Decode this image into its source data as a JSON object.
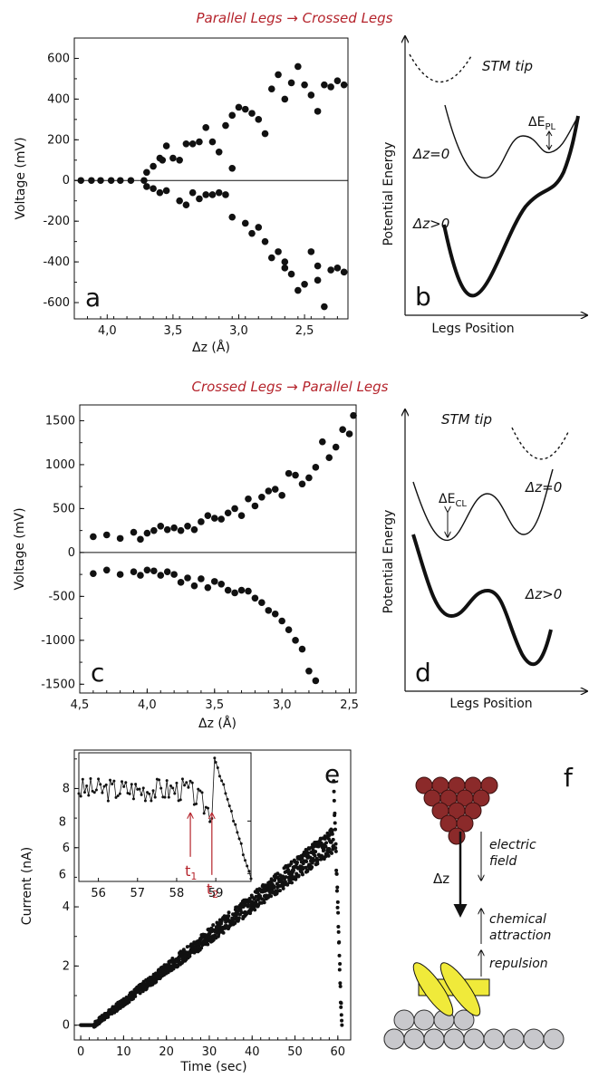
{
  "titles": {
    "top": "Parallel Legs → Crossed Legs",
    "middle": "Crossed Legs → Parallel Legs"
  },
  "panel_labels": {
    "a": "a",
    "b": "b",
    "c": "c",
    "d": "d",
    "e": "e",
    "f": "f"
  },
  "schematics": {
    "b": {
      "ylabel": "Potential Energy",
      "xlabel": "Legs Position",
      "tip": "STM tip",
      "curve_top": "Δz=0",
      "curve_bottom": "Δz>0",
      "barrier": "ΔE",
      "barrier_sub": "PL"
    },
    "d": {
      "ylabel": "Potential Energy",
      "xlabel": "Legs Position",
      "tip": "STM tip",
      "curve_top": "Δz=0",
      "curve_bottom": "Δz>0",
      "barrier": "ΔE",
      "barrier_sub": "CL"
    },
    "f": {
      "dz": "Δz",
      "electric_1": "electric",
      "electric_2": "field",
      "chem_1": "chemical",
      "chem_2": "attraction",
      "repulsion": "repulsion"
    }
  },
  "chart_data": [
    {
      "id": "a",
      "type": "scatter",
      "xlabel": "Δz (Å)",
      "ylabel": "Voltage (mV)",
      "xlim": [
        4.25,
        2.17
      ],
      "ylim": [
        -680,
        700
      ],
      "xticks": [
        "4,0",
        "3,5",
        "3,0",
        "2,5"
      ],
      "xtick_values": [
        4.0,
        3.5,
        3.0,
        2.5
      ],
      "yticks": [
        -600,
        -400,
        -200,
        0,
        200,
        400,
        600
      ],
      "x": [
        4.2,
        4.12,
        4.05,
        3.97,
        3.9,
        3.82,
        3.72,
        3.7,
        3.65,
        3.6,
        3.58,
        3.55,
        3.5,
        3.45,
        3.4,
        3.35,
        3.3,
        3.25,
        3.2,
        3.15,
        3.1,
        3.05,
        3.0,
        2.95,
        2.9,
        2.85,
        2.8,
        2.75,
        2.7,
        2.65,
        2.6,
        2.55,
        2.5,
        2.45,
        2.4,
        2.35,
        2.3,
        2.25,
        2.2,
        3.05,
        3.7,
        3.65,
        3.6,
        3.55,
        3.45,
        3.4,
        3.35,
        3.3,
        3.25,
        3.2,
        3.15,
        3.1,
        3.05,
        2.95,
        2.9,
        2.85,
        2.8,
        2.75,
        2.7,
        2.65,
        2.6,
        2.55,
        2.5,
        2.45,
        2.4,
        2.35,
        2.3,
        2.25,
        2.2,
        2.65,
        2.4
      ],
      "y": [
        0,
        0,
        0,
        0,
        0,
        0,
        0,
        40,
        70,
        110,
        100,
        170,
        110,
        100,
        180,
        180,
        190,
        260,
        190,
        140,
        270,
        320,
        360,
        350,
        330,
        300,
        230,
        450,
        520,
        400,
        480,
        560,
        470,
        420,
        340,
        470,
        460,
        490,
        470,
        60,
        -30,
        -40,
        -60,
        -50,
        -100,
        -120,
        -60,
        -90,
        -70,
        -70,
        -60,
        -70,
        -180,
        -210,
        -260,
        -230,
        -300,
        -380,
        -350,
        -430,
        -460,
        -540,
        -510,
        -350,
        -420,
        -620,
        -440,
        -430,
        -450,
        -400,
        -490
      ],
      "grid": false
    },
    {
      "id": "c",
      "type": "scatter",
      "xlabel": "Δz (Å)",
      "ylabel": "Voltage (mV)",
      "xlim": [
        4.5,
        2.45
      ],
      "ylim": [
        -1600,
        1680
      ],
      "xticks": [
        "4,5",
        "4,0",
        "3,5",
        "3,0",
        "2,5"
      ],
      "xtick_values": [
        4.5,
        4.0,
        3.5,
        3.0,
        2.5
      ],
      "yticks": [
        -1500,
        -1000,
        -500,
        0,
        500,
        1000,
        1500
      ],
      "x": [
        4.4,
        4.3,
        4.2,
        4.1,
        4.05,
        4.0,
        3.95,
        3.9,
        3.85,
        3.8,
        3.75,
        3.7,
        3.65,
        3.6,
        3.55,
        3.5,
        3.45,
        3.4,
        3.35,
        3.3,
        3.25,
        3.2,
        3.15,
        3.1,
        3.05,
        3.0,
        2.95,
        2.9,
        2.85,
        2.8,
        2.75,
        2.7,
        2.65,
        2.6,
        2.55,
        2.5,
        2.47,
        4.4,
        4.3,
        4.2,
        4.1,
        4.05,
        4.0,
        3.95,
        3.9,
        3.85,
        3.8,
        3.75,
        3.7,
        3.65,
        3.6,
        3.55,
        3.5,
        3.45,
        3.4,
        3.35,
        3.3,
        3.25,
        3.2,
        3.15,
        3.1,
        3.05,
        3.0,
        2.95,
        2.9,
        2.85,
        2.8,
        2.75
      ],
      "y": [
        180,
        200,
        160,
        230,
        150,
        220,
        250,
        300,
        260,
        280,
        250,
        300,
        260,
        350,
        420,
        390,
        380,
        450,
        500,
        420,
        610,
        530,
        630,
        700,
        720,
        650,
        900,
        880,
        780,
        850,
        970,
        1260,
        1080,
        1200,
        1400,
        1350,
        1560,
        -240,
        -200,
        -250,
        -220,
        -260,
        -200,
        -210,
        -260,
        -220,
        -250,
        -340,
        -290,
        -380,
        -300,
        -400,
        -330,
        -360,
        -430,
        -460,
        -430,
        -440,
        -520,
        -570,
        -660,
        -700,
        -780,
        -880,
        -1000,
        -1100,
        -1350,
        -1460
      ],
      "grid": false
    },
    {
      "id": "e",
      "type": "scatter",
      "xlabel": "Time (sec)",
      "ylabel": "Current (nA)",
      "xlim": [
        -1.5,
        63
      ],
      "ylim": [
        -0.5,
        9.3
      ],
      "xticks": [
        0,
        10,
        20,
        30,
        40,
        50,
        60
      ],
      "yticks": [
        0,
        2,
        4,
        6,
        8
      ],
      "description_series": "current rises linearly ~0.11 nA/s from t=3 s to ~59 s, peak ~8.2 nA at 59 s, then drops to 0 by 61 s",
      "grid": false,
      "inset": {
        "type": "line",
        "xlim": [
          55.5,
          59.9
        ],
        "ylim": [
          5.7,
          10.6
        ],
        "xticks": [
          56,
          57,
          58,
          59
        ],
        "yticks": [
          6,
          8
        ],
        "markers": [
          {
            "label": "t",
            "sub": "1",
            "x": 58.35
          },
          {
            "label": "t",
            "sub": "2",
            "x": 58.9
          }
        ]
      }
    }
  ]
}
